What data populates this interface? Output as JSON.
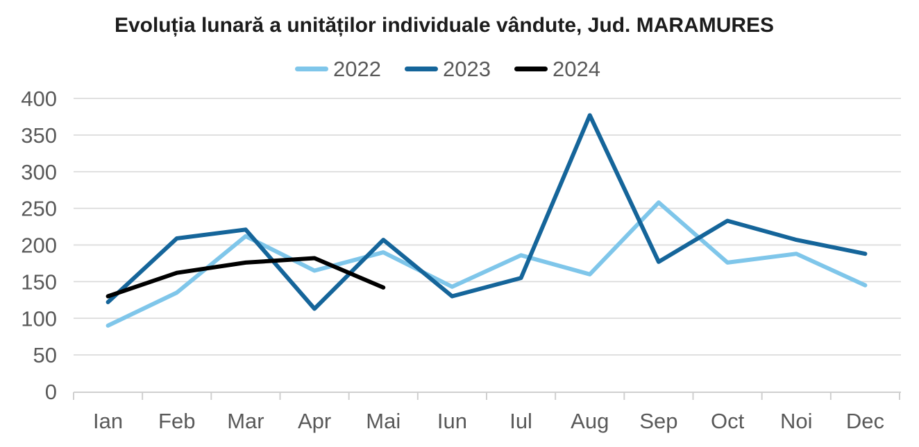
{
  "chart_data": {
    "type": "line",
    "title": "Evoluția lunară a unităților individuale vândute, Jud. MARAMURES",
    "categories": [
      "Ian",
      "Feb",
      "Mar",
      "Apr",
      "Mai",
      "Iun",
      "Iul",
      "Aug",
      "Sep",
      "Oct",
      "Noi",
      "Dec"
    ],
    "series": [
      {
        "name": "2022",
        "color": "#7FC6EA",
        "values": [
          90,
          135,
          212,
          165,
          190,
          143,
          186,
          160,
          258,
          176,
          188,
          145
        ]
      },
      {
        "name": "2023",
        "color": "#15659A",
        "values": [
          122,
          209,
          221,
          113,
          207,
          130,
          155,
          377,
          177,
          233,
          207,
          188
        ]
      },
      {
        "name": "2024",
        "color": "#000000",
        "values": [
          130,
          162,
          176,
          182,
          142,
          null,
          null,
          null,
          null,
          null,
          null,
          null
        ]
      }
    ],
    "ylim": [
      0,
      400
    ],
    "ytick_step": 50,
    "grid": "horizontal",
    "legend_position": "top-center",
    "colors": {
      "grid_line": "#DBDBDB",
      "axis_line": "#CFCFCF",
      "axis_text": "#595959",
      "title_text": "#1C1C1C",
      "background": "#FFFFFF"
    }
  }
}
